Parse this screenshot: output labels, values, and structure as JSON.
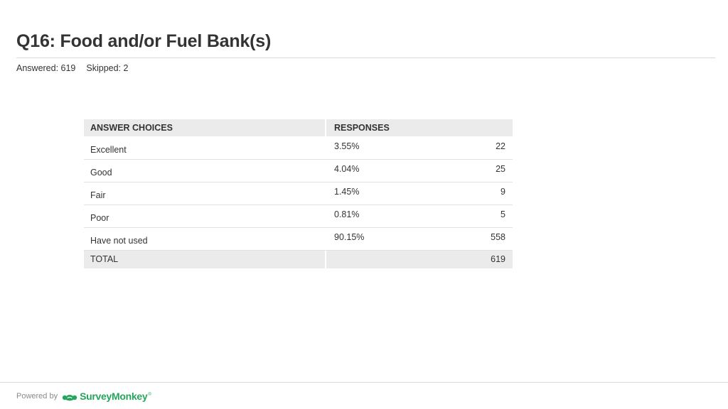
{
  "header": {
    "title": "Q16: Food and/or Fuel Bank(s)",
    "answered": "Answered: 619",
    "skipped": "Skipped: 2"
  },
  "table": {
    "col_choices": "ANSWER CHOICES",
    "col_responses": "RESPONSES",
    "rows": [
      {
        "choice": "Excellent",
        "percent": "3.55%",
        "count": "22"
      },
      {
        "choice": "Good",
        "percent": "4.04%",
        "count": "25"
      },
      {
        "choice": "Fair",
        "percent": "1.45%",
        "count": "9"
      },
      {
        "choice": "Poor",
        "percent": "0.81%",
        "count": "5"
      },
      {
        "choice": "Have not used",
        "percent": "90.15%",
        "count": "558"
      }
    ],
    "total_label": "TOTAL",
    "total_value": "619"
  },
  "footer": {
    "powered_by": "Powered by",
    "brand": "SurveyMonkey",
    "brand_tm": "®",
    "brand_color": "#26a65b",
    "brand_icon": "surveymonkey-logo-icon"
  }
}
